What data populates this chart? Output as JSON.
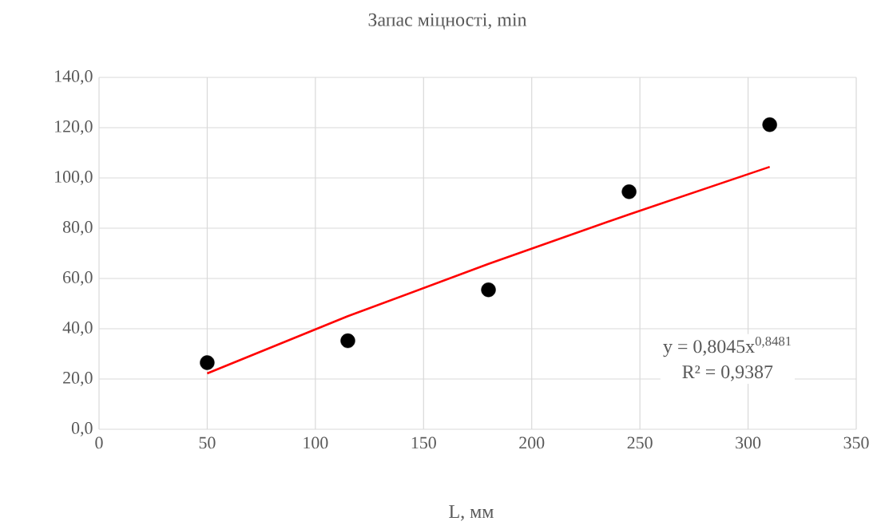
{
  "chart_data": {
    "type": "scatter",
    "title": "Запас міцності, min",
    "xlabel": "L, мм",
    "xlim": [
      0,
      350
    ],
    "xticks": [
      0,
      50,
      100,
      150,
      200,
      250,
      300,
      350
    ],
    "ylim": [
      0,
      140
    ],
    "yticks": [
      {
        "value": 0,
        "label": "0,0"
      },
      {
        "value": 20,
        "label": "20,0"
      },
      {
        "value": 40,
        "label": "40,0"
      },
      {
        "value": 60,
        "label": "60,0"
      },
      {
        "value": 80,
        "label": "80,0"
      },
      {
        "value": 100,
        "label": "100,0"
      },
      {
        "value": 120,
        "label": "120,0"
      },
      {
        "value": 140,
        "label": "140,0"
      }
    ],
    "grid": true,
    "series": [
      {
        "type": "scatter",
        "marker": "circle",
        "color": "#000000",
        "x": [
          50,
          115,
          180,
          245,
          310
        ],
        "values": [
          26.5,
          35.2,
          55.5,
          94.5,
          121.2
        ]
      },
      {
        "type": "line",
        "color": "#ff0000",
        "marker": "none",
        "line_style": "solid",
        "x": [
          50,
          115,
          180,
          245,
          310
        ],
        "values": [
          22.2,
          45.0,
          65.8,
          85.5,
          104.4
        ]
      }
    ],
    "annotations": [
      "y = 0,8045x$^{0,8481}$",
      "R² = 0,9387"
    ]
  }
}
